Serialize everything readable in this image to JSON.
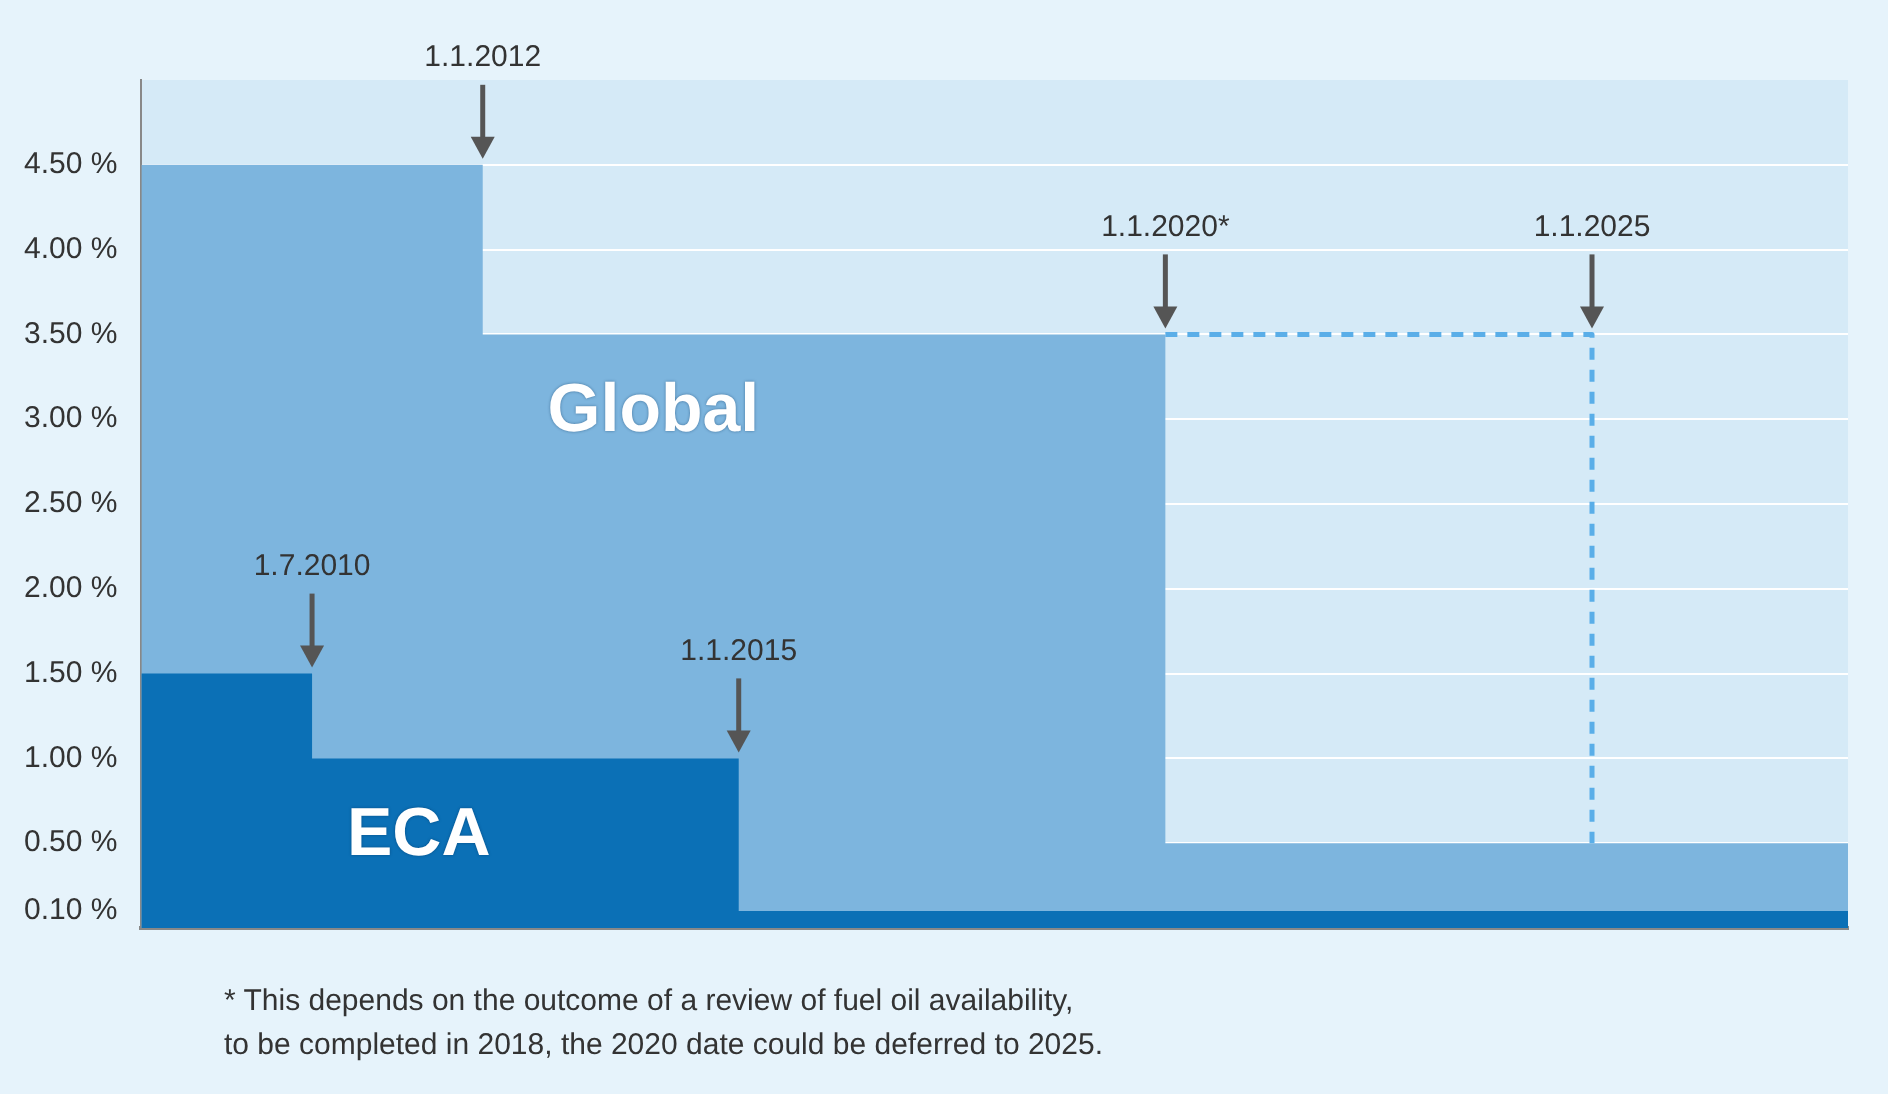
{
  "chart_data": {
    "type": "step",
    "tick_labels": "y",
    "marker": "none",
    "grid": "y",
    "legend": false,
    "categories": [
      null,
      null,
      null,
      null,
      null,
      null,
      null,
      null,
      null,
      null,
      null,
      null,
      null,
      null,
      null,
      null,
      null,
      null,
      null,
      null,
      null
    ],
    "ylim": [
      0,
      5
    ],
    "yticks": [
      {
        "value": 0.1,
        "label": "0.10 %"
      },
      {
        "value": 0.5,
        "label": "0.50 %"
      },
      {
        "value": 1,
        "label": "1.00 %"
      },
      {
        "value": 1.5,
        "label": "1.50 %"
      },
      {
        "value": 2,
        "label": "2.00 %"
      },
      {
        "value": 2.5,
        "label": "2.50 %"
      },
      {
        "value": 3,
        "label": "3.00 %"
      },
      {
        "value": 3.5,
        "label": "3.50 %"
      },
      {
        "value": 4,
        "label": "4.00 %"
      },
      {
        "value": 4.5,
        "label": "4.50 %"
      }
    ],
    "series": [
      {
        "name": "Global",
        "type": "area",
        "color": "#7db5de",
        "values": [
          4.5,
          4.5,
          4.5,
          4.5,
          3.5,
          3.5,
          3.5,
          3.5,
          3.5,
          3.5,
          3.5,
          3.5,
          0.5,
          0.5,
          0.5,
          0.5,
          0.5,
          0.5,
          0.5,
          0.5,
          0.5
        ]
      },
      {
        "name": "ECA",
        "type": "area",
        "color": "#0b70b6",
        "values": [
          1.5,
          1.5,
          1,
          1,
          1,
          1,
          1,
          0.1,
          0.1,
          0.1,
          0.1,
          0.1,
          0.1,
          0.1,
          0.1,
          0.1,
          0.1,
          0.1,
          0.1,
          0.1,
          0.1
        ]
      },
      {
        "color": "#5aaee8",
        "line_style": "dashed",
        "values": [
          null,
          null,
          null,
          null,
          null,
          null,
          null,
          null,
          null,
          null,
          null,
          null,
          3.5,
          3.5,
          3.5,
          3.5,
          3.5,
          0.5,
          null,
          null,
          null
        ]
      }
    ],
    "annotations": [
      "1.1.2012",
      "1.1.2020*",
      "1.7.2010",
      "1.1.2015",
      "1.1.2025",
      "* This depends on the outcome of a review of fuel oil availability,\nto be completed in 2018, the 2020 date could be deferred to 2025."
    ]
  }
}
